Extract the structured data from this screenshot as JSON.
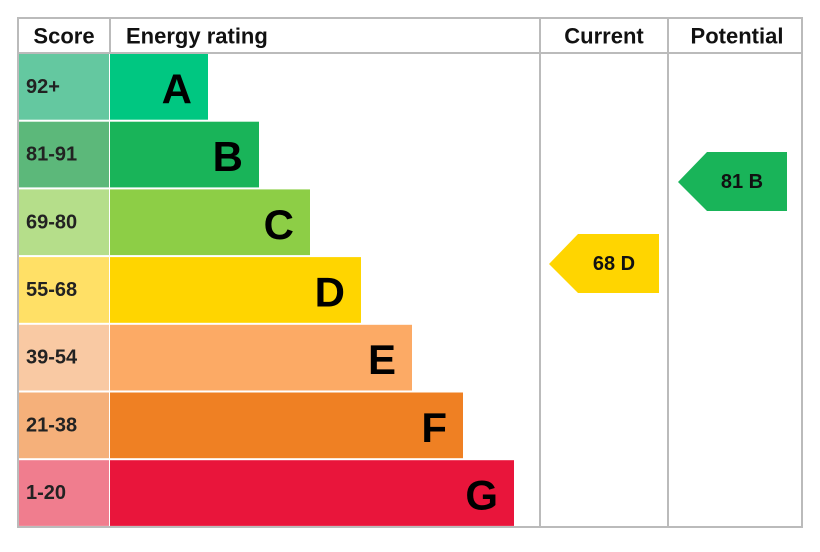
{
  "header": {
    "columns": [
      "Score",
      "Energy rating",
      "Current",
      "Potential"
    ]
  },
  "bands": [
    {
      "score": "92+",
      "letter": "A"
    },
    {
      "score": "81-91",
      "letter": "B"
    },
    {
      "score": "69-80",
      "letter": "C"
    },
    {
      "score": "55-68",
      "letter": "D"
    },
    {
      "score": "39-54",
      "letter": "E"
    },
    {
      "score": "21-38",
      "letter": "F"
    },
    {
      "score": "1-20",
      "letter": "G"
    }
  ],
  "current": "68 D",
  "potential": "81 B"
}
